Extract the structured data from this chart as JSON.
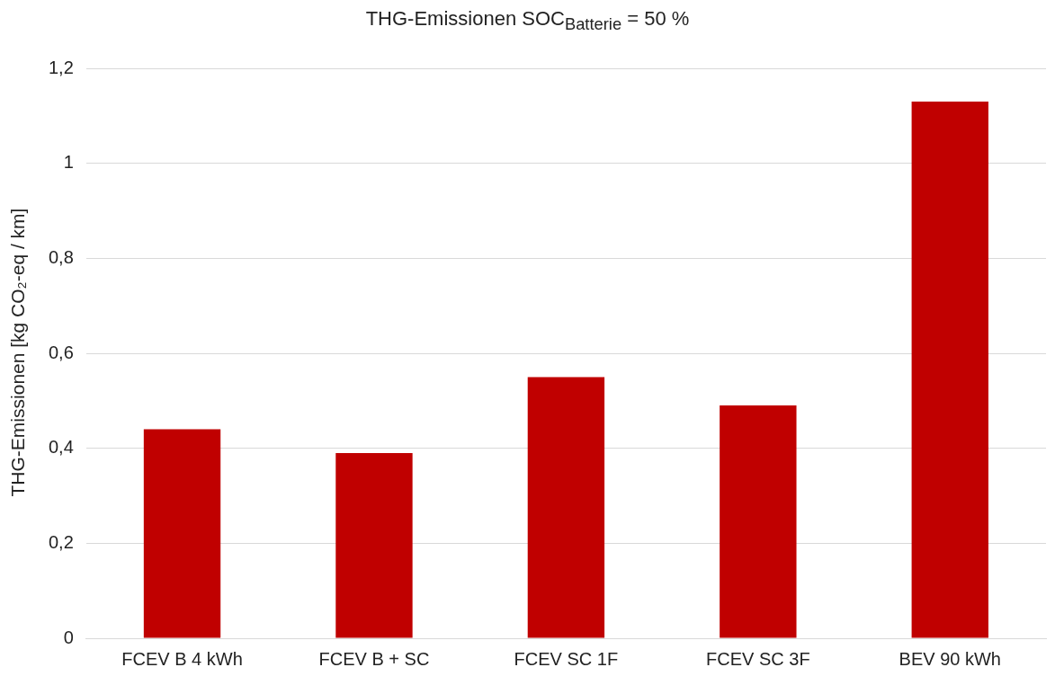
{
  "chart_data": {
    "type": "bar",
    "title": "THG-Emissionen SOC$_{Batterie}$ = 50 %",
    "ylabel": "THG-Emissionen [kg CO₂-eq / km]",
    "categories": [
      "FCEV B 4 kWh",
      "FCEV B + SC",
      "FCEV SC 1F",
      "FCEV SC 3F",
      "BEV 90 kWh"
    ],
    "values": [
      0.44,
      0.39,
      0.55,
      0.49,
      1.13
    ],
    "color": "#c00000",
    "ylim": [
      0,
      1.2
    ],
    "yticks": [
      0,
      {
        "value": 0.2,
        "label": "0,2"
      },
      {
        "value": 0.4,
        "label": "0,4"
      },
      {
        "value": 0.6,
        "label": "0,6"
      },
      {
        "value": 0.8,
        "label": "0,8"
      },
      1,
      {
        "value": 1.2,
        "label": "1,2"
      }
    ],
    "grid": "y",
    "legend": false
  }
}
